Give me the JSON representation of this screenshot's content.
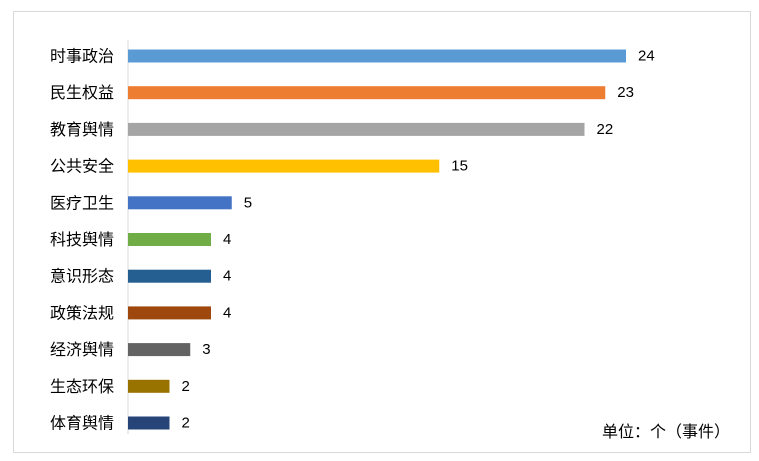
{
  "chart_data": {
    "type": "bar",
    "orientation": "horizontal",
    "categories": [
      "时事政治",
      "民生权益",
      "教育舆情",
      "公共安全",
      "医疗卫生",
      "科技舆情",
      "意识形态",
      "政策法规",
      "经济舆情",
      "生态环保",
      "体育舆情"
    ],
    "values": [
      24,
      23,
      22,
      15,
      5,
      4,
      4,
      4,
      3,
      2,
      2
    ],
    "colors": [
      "#5b9bd5",
      "#ed7d31",
      "#a5a5a5",
      "#ffc000",
      "#4472c4",
      "#70ad47",
      "#255e91",
      "#9e480e",
      "#636363",
      "#997300",
      "#264478"
    ],
    "data_labels": [
      "24",
      "23",
      "22",
      "15",
      "5",
      "4",
      "4",
      "4",
      "3",
      "2",
      "2"
    ],
    "xlim": [
      0,
      24
    ],
    "grid": false,
    "legend": "none",
    "annotation": "单位：个（事件）"
  }
}
